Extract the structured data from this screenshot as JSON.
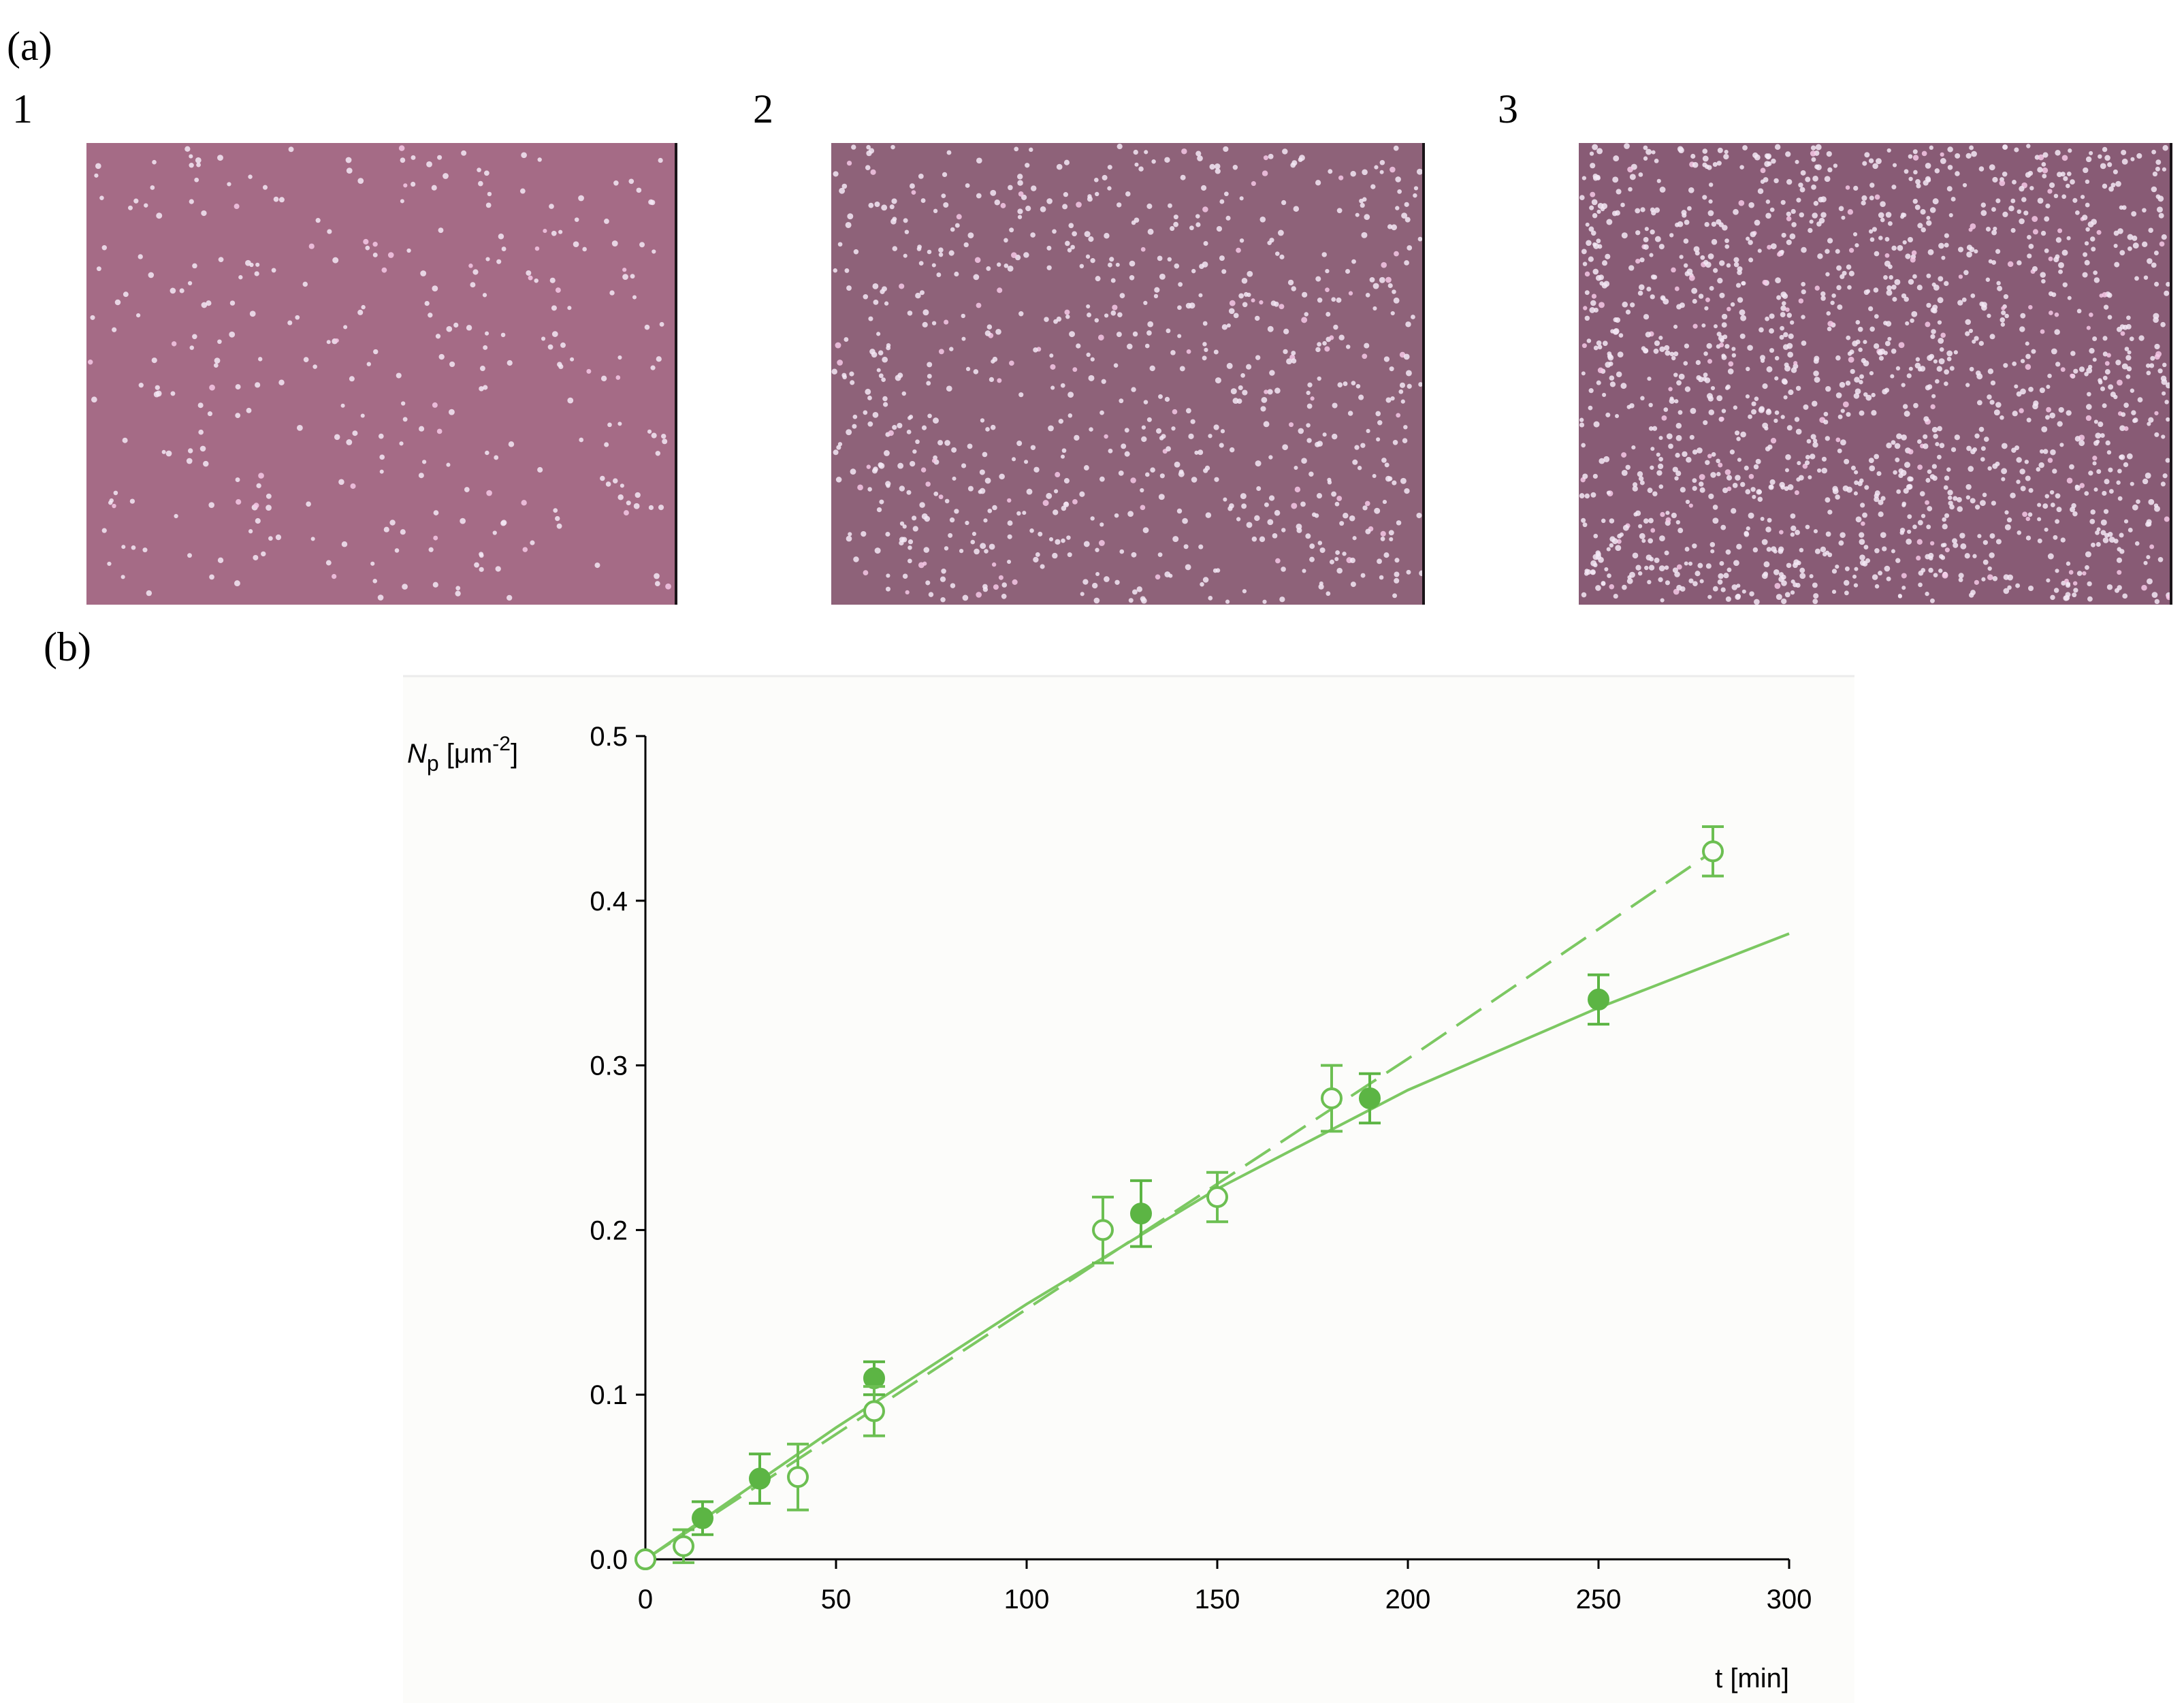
{
  "panel_a": {
    "label": "(a)",
    "images": [
      {
        "label": "1"
      },
      {
        "label": "2"
      },
      {
        "label": "3"
      }
    ]
  },
  "panel_b": {
    "label": "(b)"
  },
  "chart_data": {
    "type": "scatter",
    "ylabel": [
      "N",
      "p",
      " [μm",
      "-2",
      "]"
    ],
    "xlabel": "t [min]",
    "xlim": [
      0,
      300
    ],
    "xticks": [
      0,
      50,
      100,
      150,
      200,
      250,
      300
    ],
    "ylim": [
      0,
      0.5
    ],
    "yticks": [
      {
        "value": 0,
        "label": "0.0"
      },
      0.1,
      0.2,
      0.3,
      0.4,
      0.5
    ],
    "series": [
      {
        "type": "scatter",
        "marker": "filled",
        "color": "#5cb544",
        "x": [
          0,
          15,
          30,
          60,
          130,
          190,
          250
        ],
        "values": [
          0,
          0.025,
          0.049,
          0.11,
          0.21,
          0.28,
          0.34
        ],
        "errors": [
          0,
          0.01,
          0.015,
          0.01,
          0.02,
          0.015,
          0.015
        ]
      },
      {
        "type": "scatter",
        "marker": "open",
        "color": "#6cbf52",
        "x": [
          0,
          10,
          40,
          60,
          120,
          150,
          180,
          280
        ],
        "values": [
          0,
          0.008,
          0.05,
          0.09,
          0.2,
          0.22,
          0.28,
          0.43
        ],
        "errors": [
          0,
          0.01,
          0.02,
          0.015,
          0.02,
          0.015,
          0.02,
          0.015
        ]
      },
      {
        "type": "line",
        "style": "solid",
        "color": "#7cc862",
        "x": [
          0,
          50,
          100,
          150,
          200,
          250,
          300
        ],
        "values": [
          0,
          0.08,
          0.155,
          0.225,
          0.285,
          0.335,
          0.38
        ]
      },
      {
        "type": "line",
        "style": "dashed",
        "color": "#7cc862",
        "x": [
          0,
          100,
          200,
          280
        ],
        "values": [
          0,
          0.152,
          0.304,
          0.43
        ]
      }
    ]
  }
}
